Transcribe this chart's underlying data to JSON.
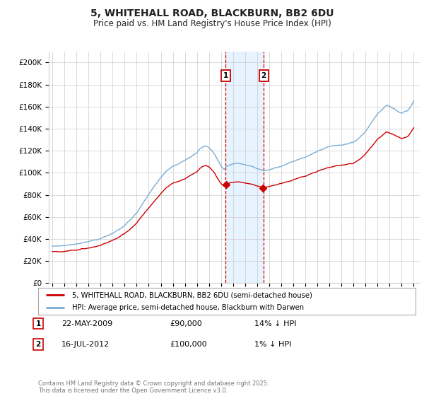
{
  "title": "5, WHITEHALL ROAD, BLACKBURN, BB2 6DU",
  "subtitle": "Price paid vs. HM Land Registry's House Price Index (HPI)",
  "legend_property": "5, WHITEHALL ROAD, BLACKBURN, BB2 6DU (semi-detached house)",
  "legend_hpi": "HPI: Average price, semi-detached house, Blackburn with Darwen",
  "footer": "Contains HM Land Registry data © Crown copyright and database right 2025.\nThis data is licensed under the Open Government Licence v3.0.",
  "purchase1_date": "22-MAY-2009",
  "purchase1_price": "£90,000",
  "purchase1_hpi": "14% ↓ HPI",
  "purchase1_year": 2009.38,
  "purchase1_value": 90000,
  "purchase2_date": "16-JUL-2012",
  "purchase2_price": "£100,000",
  "purchase2_hpi": "1% ↓ HPI",
  "purchase2_year": 2012.54,
  "purchase2_value": 100000,
  "ylim": [
    0,
    210000
  ],
  "yticks": [
    0,
    20000,
    40000,
    60000,
    80000,
    100000,
    120000,
    140000,
    160000,
    180000,
    200000
  ],
  "xlim_left": 1994.7,
  "xlim_right": 2025.5,
  "color_property": "#cc0000",
  "color_hpi": "#7aadd4",
  "color_shade": "#ddeeff",
  "color_grid": "#cccccc",
  "color_title": "#222222",
  "annotation_box_color": "#cc0000",
  "background_color": "#ffffff",
  "hpi_baseline": [
    [
      1995.0,
      33500
    ],
    [
      1995.5,
      33800
    ],
    [
      1996.0,
      34200
    ],
    [
      1996.5,
      35000
    ],
    [
      1997.0,
      35500
    ],
    [
      1997.5,
      37000
    ],
    [
      1998.0,
      38500
    ],
    [
      1998.5,
      39500
    ],
    [
      1999.0,
      41000
    ],
    [
      1999.5,
      43000
    ],
    [
      2000.0,
      45500
    ],
    [
      2000.5,
      49000
    ],
    [
      2001.0,
      53000
    ],
    [
      2001.5,
      58000
    ],
    [
      2002.0,
      64000
    ],
    [
      2002.5,
      72000
    ],
    [
      2003.0,
      80000
    ],
    [
      2003.5,
      88000
    ],
    [
      2004.0,
      95000
    ],
    [
      2004.5,
      101000
    ],
    [
      2005.0,
      105000
    ],
    [
      2005.5,
      107000
    ],
    [
      2006.0,
      110000
    ],
    [
      2006.5,
      114000
    ],
    [
      2007.0,
      118000
    ],
    [
      2007.25,
      122000
    ],
    [
      2007.5,
      124000
    ],
    [
      2007.75,
      125000
    ],
    [
      2008.0,
      123000
    ],
    [
      2008.25,
      120000
    ],
    [
      2008.5,
      116000
    ],
    [
      2008.75,
      111000
    ],
    [
      2009.0,
      106000
    ],
    [
      2009.25,
      103000
    ],
    [
      2009.38,
      105000
    ],
    [
      2009.5,
      106000
    ],
    [
      2009.75,
      107000
    ],
    [
      2010.0,
      108000
    ],
    [
      2010.5,
      108500
    ],
    [
      2011.0,
      107000
    ],
    [
      2011.5,
      106000
    ],
    [
      2012.0,
      104000
    ],
    [
      2012.54,
      102000
    ],
    [
      2012.75,
      102500
    ],
    [
      2013.0,
      103000
    ],
    [
      2013.5,
      104500
    ],
    [
      2014.0,
      106000
    ],
    [
      2014.5,
      108000
    ],
    [
      2015.0,
      110000
    ],
    [
      2015.5,
      112000
    ],
    [
      2016.0,
      114000
    ],
    [
      2016.5,
      116500
    ],
    [
      2017.0,
      119000
    ],
    [
      2017.5,
      121000
    ],
    [
      2018.0,
      123000
    ],
    [
      2018.5,
      124500
    ],
    [
      2019.0,
      125000
    ],
    [
      2019.5,
      126000
    ],
    [
      2020.0,
      127000
    ],
    [
      2020.5,
      131000
    ],
    [
      2021.0,
      137000
    ],
    [
      2021.5,
      145000
    ],
    [
      2022.0,
      153000
    ],
    [
      2022.5,
      158000
    ],
    [
      2022.75,
      161000
    ],
    [
      2023.0,
      160000
    ],
    [
      2023.5,
      157000
    ],
    [
      2024.0,
      154000
    ],
    [
      2024.5,
      156000
    ],
    [
      2024.75,
      160000
    ],
    [
      2025.0,
      165000
    ]
  ]
}
